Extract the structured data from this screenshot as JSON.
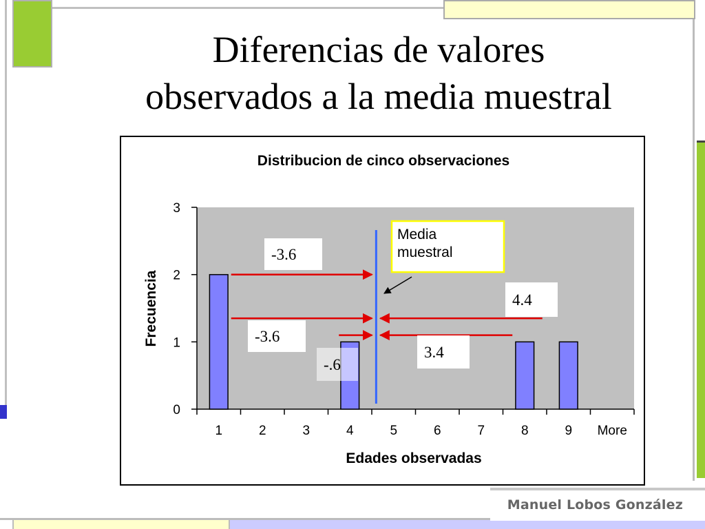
{
  "slide": {
    "title_line1": "Diferencias de valores",
    "title_line2": "observados a la media muestral",
    "author": "Manuel Lobos González"
  },
  "colors": {
    "bar_fill": "#8080ff",
    "plot_background": "#c0c0c0",
    "mean_line": "#3366ff",
    "arrow_color": "#e00000",
    "callout_border": "#ffff00",
    "accent_green": "#99cc33"
  },
  "chart_data": {
    "type": "bar",
    "title": "Distribucion de cinco observaciones",
    "xlabel": "Edades observadas",
    "ylabel": "Frecuencia",
    "categories": [
      "1",
      "2",
      "3",
      "4",
      "5",
      "6",
      "7",
      "8",
      "9",
      "More"
    ],
    "values": [
      2,
      0,
      0,
      1,
      0,
      0,
      0,
      1,
      1,
      0
    ],
    "ylim": [
      0,
      3
    ],
    "yticks": [
      "0",
      "1",
      "2",
      "3"
    ],
    "grid": false,
    "mean": 4.6,
    "mean_label": "Media muestral",
    "annotations": [
      {
        "text": "-3.6",
        "from": 1,
        "to": 4.6,
        "level": 2
      },
      {
        "text": "-3.6",
        "from": 1,
        "to": 4.6,
        "level": 1.35
      },
      {
        "text": "-.6",
        "from": 4,
        "to": 4.6,
        "level": 1.1
      },
      {
        "text": "3.4",
        "from": 8,
        "to": 4.6,
        "level": 1.1
      },
      {
        "text": "4.4",
        "from": 9,
        "to": 4.6,
        "level": 1.35
      }
    ]
  }
}
